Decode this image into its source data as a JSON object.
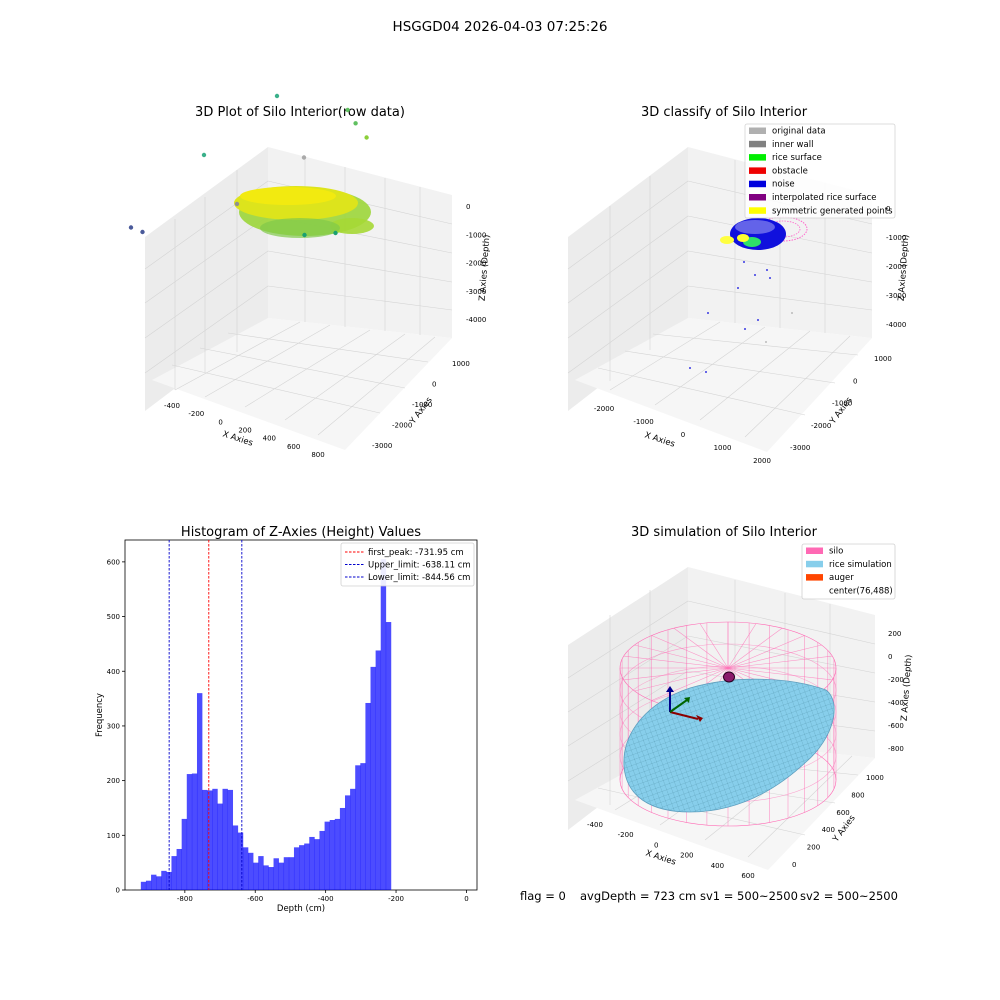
{
  "suptitle": "HSGGD04 2026-04-03 07:25:26",
  "footer": {
    "flag": "flag = 0",
    "avg": "avgDepth = 723 cm",
    "sv1": "sv1 = 500~2500",
    "sv2": "sv2 = 500~2500"
  },
  "chart_data": [
    {
      "type": "scatter",
      "title": "3D Plot of Silo Interior(row data)",
      "xlabel": "X Axies",
      "ylabel": "Y Axies",
      "zlabel": "Z Axies (Depth)",
      "x_ticks": [
        "-400",
        "-200",
        "0",
        "200",
        "400",
        "600",
        "800"
      ],
      "y_ticks": [
        "1000",
        "0",
        "-1000",
        "-2000",
        "-3000"
      ],
      "z_ticks": [
        "0",
        "-1000",
        "-2000",
        "-3000",
        "-4000"
      ],
      "points": [
        {
          "x": -300,
          "y": -2600,
          "z": -3900,
          "color": "#4a5a9a"
        },
        {
          "x": -250,
          "y": -2500,
          "z": -4000,
          "color": "#4a5a9a"
        },
        {
          "x": -150,
          "y": -1200,
          "z": -2900,
          "color": "#3ab08a"
        },
        {
          "x": 100,
          "y": -1400,
          "z": -3600,
          "color": "#909090"
        },
        {
          "x": 500,
          "y": -1300,
          "z": -3900,
          "color": "#1aa070"
        },
        {
          "x": 650,
          "y": -1100,
          "z": -3800,
          "color": "#1aa070"
        },
        {
          "x": 300,
          "y": -400,
          "z": -2900,
          "color": "#aaaaaa"
        },
        {
          "x": 0,
          "y": 200,
          "z": -2200,
          "color": "#3ab08a"
        },
        {
          "x": 420,
          "y": 300,
          "z": -2100,
          "color": "#60c060"
        },
        {
          "x": 480,
          "y": 250,
          "z": -2300,
          "color": "#60c060"
        },
        {
          "x": 560,
          "y": 200,
          "z": -2500,
          "color": "#8ccf3a"
        }
      ]
    },
    {
      "type": "scatter",
      "title": "3D classify of Silo Interior",
      "xlabel": "X Axies",
      "ylabel": "Y Axies",
      "zlabel": "Z Axies (Depth)",
      "x_ticks": [
        "-2000",
        "-1000",
        "0",
        "1000",
        "2000"
      ],
      "y_ticks": [
        "1000",
        "0",
        "-1000",
        "-2000",
        "-3000"
      ],
      "z_ticks": [
        "0",
        "-1000",
        "-2000",
        "-3000",
        "-4000"
      ],
      "legend": [
        {
          "label": "original data",
          "color": "#b0b0b0"
        },
        {
          "label": "inner wall",
          "color": "#808080"
        },
        {
          "label": "rice surface",
          "color": "#00ee00"
        },
        {
          "label": "obstacle",
          "color": "#ee0000"
        },
        {
          "label": "noise",
          "color": "#0000dd"
        },
        {
          "label": "interpolated rice surface",
          "color": "#800080"
        },
        {
          "label": "symmetric generated points",
          "color": "#ffff00"
        }
      ]
    },
    {
      "type": "bar",
      "title": "Histogram of Z-Axies (Height) Values",
      "xlabel": "Depth (cm)",
      "ylabel": "Frequency",
      "xlim": [
        -970,
        30
      ],
      "ylim": [
        0,
        640
      ],
      "x_ticks": [
        "-800",
        "-600",
        "-400",
        "-200",
        "0"
      ],
      "y_ticks": [
        "0",
        "100",
        "200",
        "300",
        "400",
        "500",
        "600"
      ],
      "bin_start": -925,
      "bin_width": 14.5,
      "values": [
        15,
        17,
        28,
        25,
        35,
        33,
        62,
        75,
        130,
        212,
        213,
        360,
        183,
        182,
        185,
        158,
        185,
        183,
        118,
        105,
        78,
        68,
        50,
        62,
        45,
        42,
        58,
        50,
        60,
        60,
        78,
        82,
        85,
        97,
        93,
        108,
        125,
        128,
        130,
        150,
        173,
        185,
        228,
        232,
        342,
        408,
        438,
        605,
        490
      ],
      "lines": [
        {
          "label": "first_peak: -731.95 cm",
          "value": -731.95,
          "color": "#ff0000"
        },
        {
          "label": "Upper_limit: -638.11 cm",
          "value": -638.11,
          "color": "#0000cc"
        },
        {
          "label": "Lower_limit: -844.56 cm",
          "value": -844.56,
          "color": "#0000cc"
        }
      ]
    },
    {
      "type": "scatter",
      "title": "3D simulation of Silo Interior",
      "xlabel": "X Axies",
      "ylabel": "Y Axies",
      "zlabel": "Z Axies (Depth)",
      "x_ticks": [
        "-400",
        "-200",
        "0",
        "200",
        "400",
        "600"
      ],
      "y_ticks": [
        "1000",
        "800",
        "600",
        "400",
        "200",
        "0"
      ],
      "z_ticks": [
        "200",
        "0",
        "-200",
        "-400",
        "-600",
        "-800"
      ],
      "legend": [
        {
          "label": "silo",
          "color": "#ff69b4"
        },
        {
          "label": "rice simulation",
          "color": "#87ceeb"
        },
        {
          "label": "auger",
          "color": "#ff4500"
        },
        {
          "label": "center(76,488)",
          "color": ""
        }
      ]
    }
  ]
}
